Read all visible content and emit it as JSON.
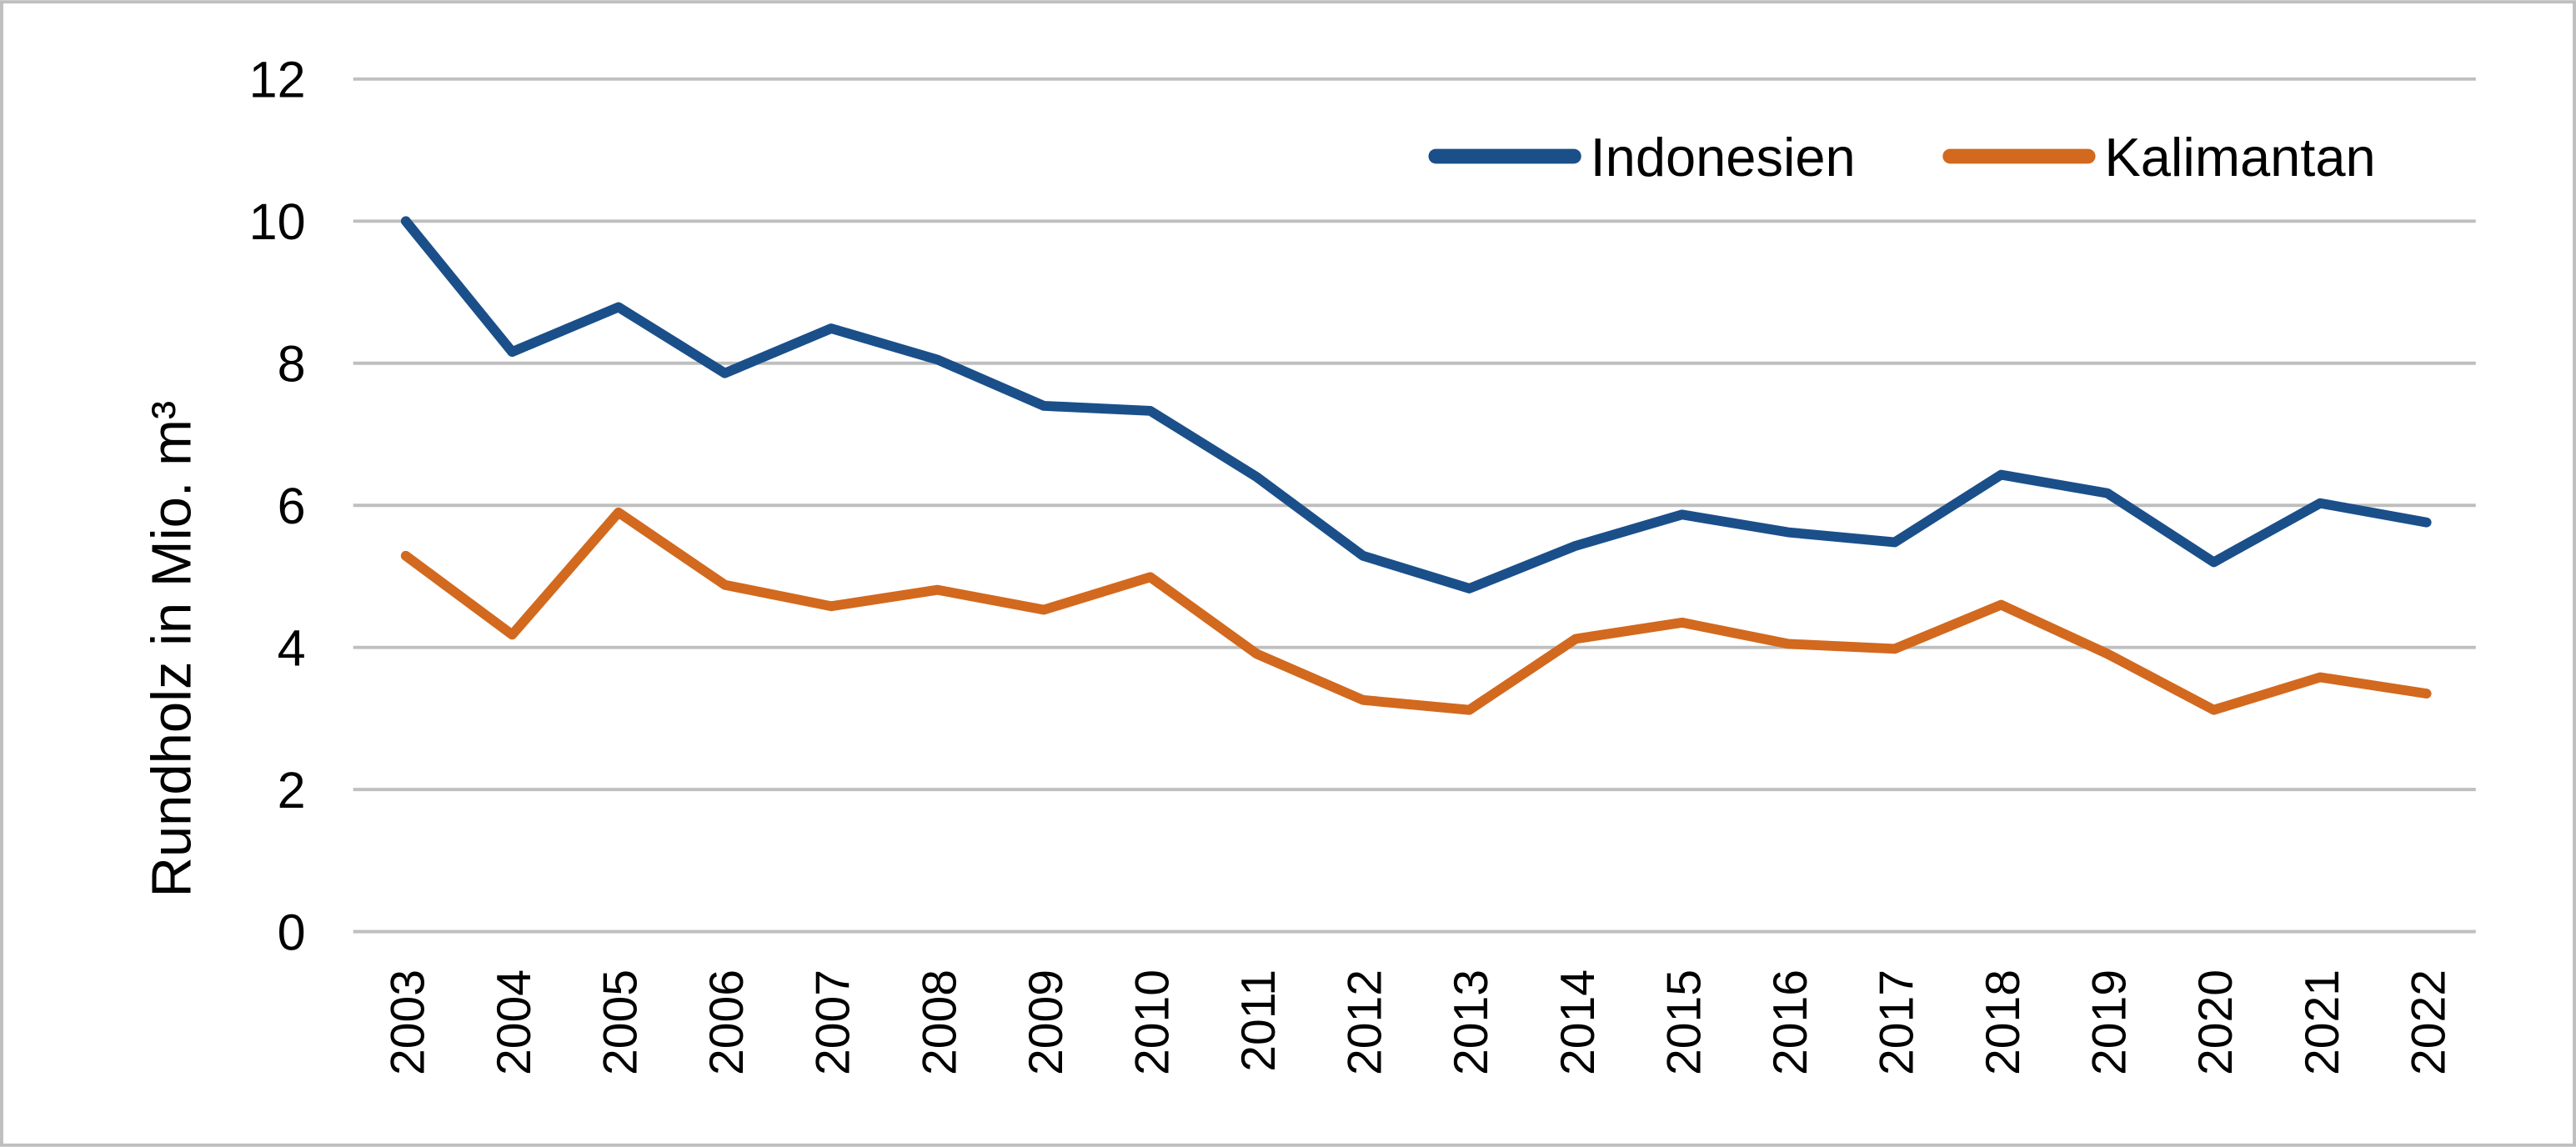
{
  "chart_data": {
    "type": "line",
    "title": "",
    "xlabel": "",
    "ylabel": "Rundholz in Mio. m³",
    "ylim": [
      0,
      12
    ],
    "yticks": [
      0,
      2,
      4,
      6,
      8,
      10,
      12
    ],
    "grid": true,
    "legend_position": "top-right",
    "categories": [
      "2003",
      "2004",
      "2005",
      "2006",
      "2007",
      "2008",
      "2009",
      "2010",
      "2011",
      "2012",
      "2013",
      "2014",
      "2015",
      "2016",
      "2017",
      "2018",
      "2019",
      "2020",
      "2021",
      "2022"
    ],
    "series": [
      {
        "name": "Indonesien",
        "color": "#1a4f8a",
        "values": [
          10.0,
          8.16,
          8.79,
          7.86,
          8.49,
          8.05,
          7.4,
          7.33,
          6.4,
          5.29,
          4.83,
          5.43,
          5.87,
          5.62,
          5.48,
          6.43,
          6.17,
          5.2,
          6.03,
          5.76
        ]
      },
      {
        "name": "Kalimantan",
        "color": "#d2691e",
        "values": [
          5.29,
          4.18,
          5.9,
          4.88,
          4.58,
          4.81,
          4.53,
          4.99,
          3.91,
          3.26,
          3.12,
          4.12,
          4.35,
          4.05,
          3.98,
          4.6,
          3.91,
          3.12,
          3.58,
          3.35
        ]
      }
    ]
  }
}
